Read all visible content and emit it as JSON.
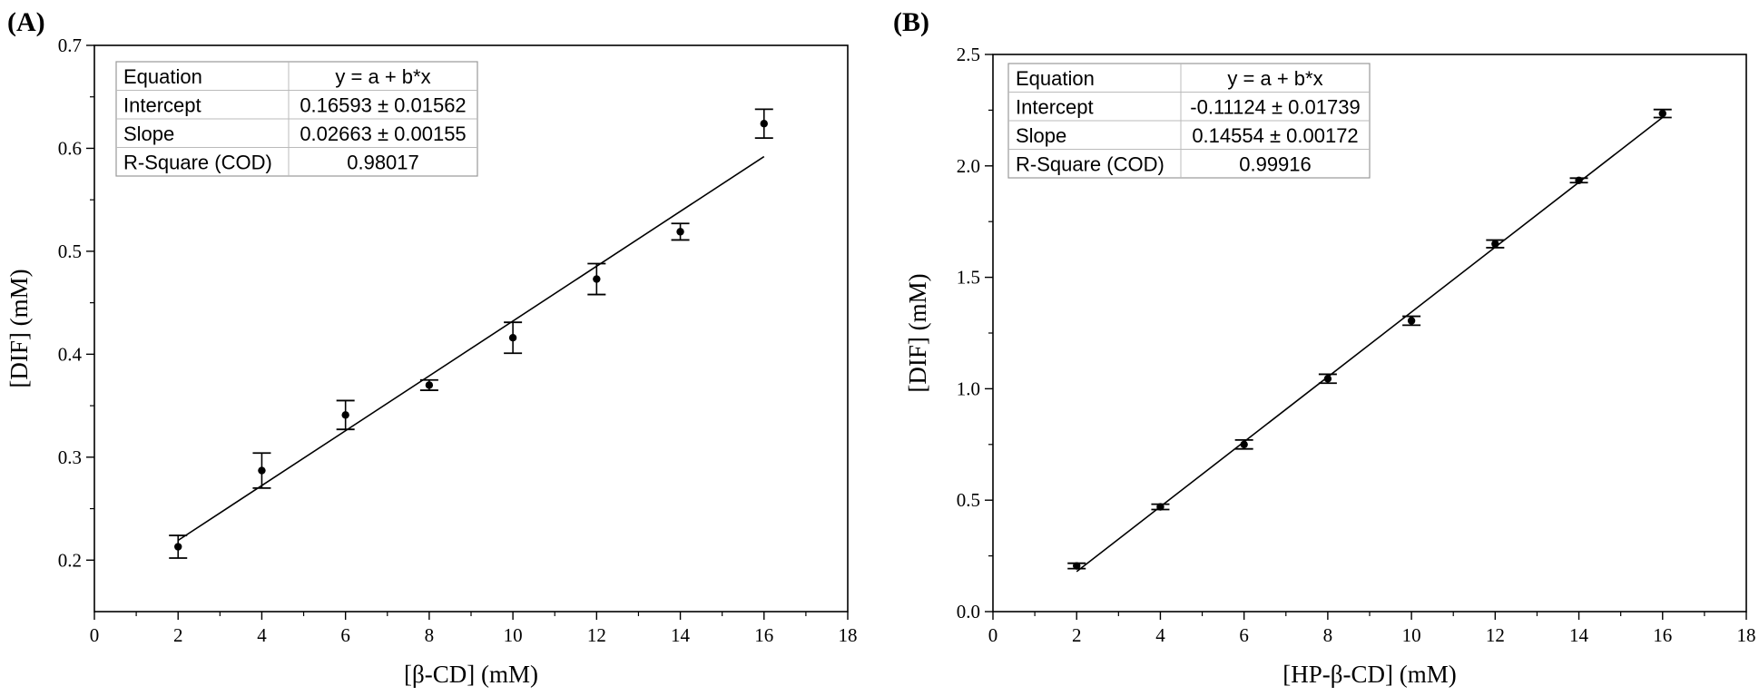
{
  "chart_data": [
    {
      "panel_label": "(A)",
      "type": "scatter",
      "xlabel": "[β-CD] (mM)",
      "ylabel": "[DIF] (mM)",
      "xlim": [
        0,
        18
      ],
      "ylim": [
        0.15,
        0.7
      ],
      "xticks": [
        0,
        2,
        4,
        6,
        8,
        10,
        12,
        14,
        16,
        18
      ],
      "xtick_labels": [
        "0",
        "2",
        "4",
        "6",
        "8",
        "10",
        "12",
        "14",
        "16",
        "18"
      ],
      "yticks": [
        0.2,
        0.3,
        0.4,
        0.5,
        0.6,
        0.7
      ],
      "ytick_labels": [
        "0.2",
        "0.3",
        "0.4",
        "0.5",
        "0.6",
        "0.7"
      ],
      "x": [
        2,
        4,
        6,
        8,
        10,
        12,
        14,
        16
      ],
      "y": [
        0.213,
        0.287,
        0.341,
        0.37,
        0.416,
        0.473,
        0.519,
        0.624
      ],
      "err": [
        0.011,
        0.017,
        0.014,
        0.005,
        0.015,
        0.015,
        0.008,
        0.014
      ],
      "fit": {
        "intercept": 0.16593,
        "slope": 0.02663,
        "x_range": [
          2,
          16
        ]
      },
      "stats_table": [
        [
          "Equation",
          "y = a + b*x"
        ],
        [
          "Intercept",
          "0.16593 ± 0.01562"
        ],
        [
          "Slope",
          "0.02663 ± 0.00155"
        ],
        [
          "R-Square (COD)",
          "0.98017"
        ]
      ]
    },
    {
      "panel_label": "(B)",
      "type": "scatter",
      "xlabel": "[HP-β-CD] (mM)",
      "ylabel": "[DIF] (mM)",
      "xlim": [
        0,
        18
      ],
      "ylim": [
        0,
        2.5
      ],
      "xticks": [
        0,
        2,
        4,
        6,
        8,
        10,
        12,
        14,
        16,
        18
      ],
      "xtick_labels": [
        "0",
        "2",
        "4",
        "6",
        "8",
        "10",
        "12",
        "14",
        "16",
        "18"
      ],
      "yticks": [
        0,
        0.5,
        1.0,
        1.5,
        2.0,
        2.5
      ],
      "ytick_labels": [
        "0.0",
        "0.5",
        "1.0",
        "1.5",
        "2.0",
        "2.5"
      ],
      "x": [
        2,
        4,
        6,
        8,
        10,
        12,
        14,
        16
      ],
      "y": [
        0.205,
        0.47,
        0.75,
        1.045,
        1.305,
        1.65,
        1.935,
        2.235
      ],
      "err": [
        0.012,
        0.012,
        0.02,
        0.02,
        0.02,
        0.017,
        0.01,
        0.018
      ],
      "fit": {
        "intercept": -0.11124,
        "slope": 0.14554,
        "x_range": [
          2,
          16
        ]
      },
      "stats_table": [
        [
          "Equation",
          "y = a + b*x"
        ],
        [
          "Intercept",
          "-0.11124 ± 0.01739"
        ],
        [
          "Slope",
          "0.14554 ± 0.00172"
        ],
        [
          "R-Square (COD)",
          "0.99916"
        ]
      ]
    }
  ]
}
